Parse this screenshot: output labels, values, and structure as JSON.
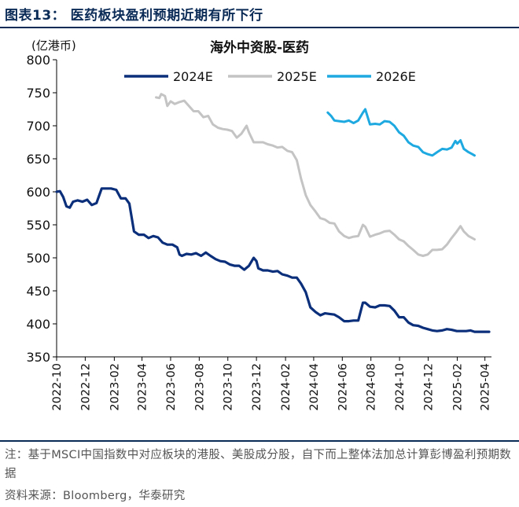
{
  "header": {
    "title": "图表13：  医药板块盈利预期近期有所下行"
  },
  "chart_data": {
    "type": "line",
    "title": "海外中资股-医药",
    "ylabel": "(亿港币)",
    "ylim": [
      350,
      800
    ],
    "yticks": [
      350,
      400,
      450,
      500,
      550,
      600,
      650,
      700,
      750,
      800
    ],
    "x_range": [
      "2022-10-01",
      "2025-04-15"
    ],
    "x_ticks": [
      "2022-10",
      "2022-12",
      "2023-02",
      "2023-04",
      "2023-06",
      "2023-08",
      "2023-10",
      "2023-12",
      "2024-02",
      "2024-04",
      "2024-06",
      "2024-08",
      "2024-10",
      "2024-12",
      "2025-02",
      "2025-04"
    ],
    "legend_position": "top",
    "grid": false,
    "series": [
      {
        "name": "2024E",
        "color": "#0b2f7a",
        "points": [
          [
            "2022-10-01",
            600
          ],
          [
            "2022-10-08",
            601
          ],
          [
            "2022-10-15",
            592
          ],
          [
            "2022-10-22",
            578
          ],
          [
            "2022-10-29",
            576
          ],
          [
            "2022-11-05",
            585
          ],
          [
            "2022-11-15",
            587
          ],
          [
            "2022-11-25",
            585
          ],
          [
            "2022-12-05",
            588
          ],
          [
            "2022-12-15",
            580
          ],
          [
            "2022-12-25",
            583
          ],
          [
            "2023-01-05",
            605
          ],
          [
            "2023-01-15",
            605
          ],
          [
            "2023-01-25",
            605
          ],
          [
            "2023-02-05",
            603
          ],
          [
            "2023-02-15",
            590
          ],
          [
            "2023-02-25",
            590
          ],
          [
            "2023-03-05",
            582
          ],
          [
            "2023-03-15",
            540
          ],
          [
            "2023-03-25",
            535
          ],
          [
            "2023-04-05",
            535
          ],
          [
            "2023-04-15",
            530
          ],
          [
            "2023-04-25",
            533
          ],
          [
            "2023-05-05",
            531
          ],
          [
            "2023-05-15",
            523
          ],
          [
            "2023-05-25",
            520
          ],
          [
            "2023-06-05",
            520
          ],
          [
            "2023-06-15",
            516
          ],
          [
            "2023-06-20",
            505
          ],
          [
            "2023-06-25",
            503
          ],
          [
            "2023-07-05",
            506
          ],
          [
            "2023-07-15",
            505
          ],
          [
            "2023-07-25",
            507
          ],
          [
            "2023-08-05",
            503
          ],
          [
            "2023-08-15",
            508
          ],
          [
            "2023-08-25",
            503
          ],
          [
            "2023-09-05",
            498
          ],
          [
            "2023-09-15",
            495
          ],
          [
            "2023-09-25",
            494
          ],
          [
            "2023-10-05",
            490
          ],
          [
            "2023-10-15",
            488
          ],
          [
            "2023-10-25",
            488
          ],
          [
            "2023-11-05",
            482
          ],
          [
            "2023-11-15",
            488
          ],
          [
            "2023-11-25",
            500
          ],
          [
            "2023-12-01",
            495
          ],
          [
            "2023-12-05",
            484
          ],
          [
            "2023-12-15",
            481
          ],
          [
            "2023-12-25",
            481
          ],
          [
            "2024-01-05",
            479
          ],
          [
            "2024-01-15",
            480
          ],
          [
            "2024-01-25",
            475
          ],
          [
            "2024-02-05",
            473
          ],
          [
            "2024-02-15",
            470
          ],
          [
            "2024-02-25",
            470
          ],
          [
            "2024-03-05",
            461
          ],
          [
            "2024-03-15",
            448
          ],
          [
            "2024-03-25",
            425
          ],
          [
            "2024-04-05",
            418
          ],
          [
            "2024-04-15",
            413
          ],
          [
            "2024-04-25",
            416
          ],
          [
            "2024-05-05",
            415
          ],
          [
            "2024-05-15",
            414
          ],
          [
            "2024-05-25",
            410
          ],
          [
            "2024-06-05",
            404
          ],
          [
            "2024-06-15",
            404
          ],
          [
            "2024-06-25",
            405
          ],
          [
            "2024-07-05",
            405
          ],
          [
            "2024-07-15",
            432
          ],
          [
            "2024-07-20",
            432
          ],
          [
            "2024-07-30",
            426
          ],
          [
            "2024-08-10",
            425
          ],
          [
            "2024-08-20",
            428
          ],
          [
            "2024-08-30",
            428
          ],
          [
            "2024-09-10",
            427
          ],
          [
            "2024-09-20",
            420
          ],
          [
            "2024-09-30",
            410
          ],
          [
            "2024-10-10",
            410
          ],
          [
            "2024-10-20",
            402
          ],
          [
            "2024-10-30",
            398
          ],
          [
            "2024-11-10",
            397
          ],
          [
            "2024-11-20",
            394
          ],
          [
            "2024-11-30",
            392
          ],
          [
            "2024-12-10",
            390
          ],
          [
            "2024-12-20",
            389
          ],
          [
            "2024-12-31",
            390
          ],
          [
            "2025-01-10",
            392
          ],
          [
            "2025-01-20",
            391
          ],
          [
            "2025-01-31",
            389
          ],
          [
            "2025-02-10",
            389
          ],
          [
            "2025-02-20",
            389
          ],
          [
            "2025-03-01",
            390
          ],
          [
            "2025-03-10",
            388
          ],
          [
            "2025-03-20",
            388
          ],
          [
            "2025-04-10",
            388
          ]
        ]
      },
      {
        "name": "2025E",
        "color": "#c4c4c4",
        "points": [
          [
            "2023-05-01",
            743
          ],
          [
            "2023-05-08",
            742
          ],
          [
            "2023-05-12",
            748
          ],
          [
            "2023-05-20",
            745
          ],
          [
            "2023-05-25",
            730
          ],
          [
            "2023-06-01",
            737
          ],
          [
            "2023-06-10",
            733
          ],
          [
            "2023-06-20",
            736
          ],
          [
            "2023-06-30",
            738
          ],
          [
            "2023-07-10",
            730
          ],
          [
            "2023-07-20",
            722
          ],
          [
            "2023-07-30",
            722
          ],
          [
            "2023-08-10",
            713
          ],
          [
            "2023-08-20",
            715
          ],
          [
            "2023-08-30",
            702
          ],
          [
            "2023-09-10",
            697
          ],
          [
            "2023-09-20",
            695
          ],
          [
            "2023-09-30",
            694
          ],
          [
            "2023-10-10",
            692
          ],
          [
            "2023-10-20",
            682
          ],
          [
            "2023-10-30",
            688
          ],
          [
            "2023-11-10",
            700
          ],
          [
            "2023-11-15",
            690
          ],
          [
            "2023-11-25",
            675
          ],
          [
            "2023-12-05",
            675
          ],
          [
            "2023-12-15",
            675
          ],
          [
            "2023-12-25",
            672
          ],
          [
            "2024-01-05",
            670
          ],
          [
            "2024-01-15",
            667
          ],
          [
            "2024-01-25",
            668
          ],
          [
            "2024-02-05",
            662
          ],
          [
            "2024-02-15",
            660
          ],
          [
            "2024-02-25",
            648
          ],
          [
            "2024-03-05",
            620
          ],
          [
            "2024-03-15",
            595
          ],
          [
            "2024-03-25",
            580
          ],
          [
            "2024-04-05",
            570
          ],
          [
            "2024-04-15",
            560
          ],
          [
            "2024-04-25",
            558
          ],
          [
            "2024-05-05",
            553
          ],
          [
            "2024-05-15",
            552
          ],
          [
            "2024-05-25",
            540
          ],
          [
            "2024-06-05",
            533
          ],
          [
            "2024-06-15",
            530
          ],
          [
            "2024-06-25",
            532
          ],
          [
            "2024-07-05",
            533
          ],
          [
            "2024-07-15",
            550
          ],
          [
            "2024-07-20",
            547
          ],
          [
            "2024-07-30",
            532
          ],
          [
            "2024-08-10",
            535
          ],
          [
            "2024-08-20",
            537
          ],
          [
            "2024-08-30",
            540
          ],
          [
            "2024-09-10",
            541
          ],
          [
            "2024-09-20",
            535
          ],
          [
            "2024-09-30",
            528
          ],
          [
            "2024-10-10",
            525
          ],
          [
            "2024-10-20",
            518
          ],
          [
            "2024-10-30",
            512
          ],
          [
            "2024-11-10",
            505
          ],
          [
            "2024-11-20",
            503
          ],
          [
            "2024-11-30",
            505
          ],
          [
            "2024-12-10",
            512
          ],
          [
            "2024-12-20",
            512
          ],
          [
            "2024-12-31",
            513
          ],
          [
            "2025-01-10",
            520
          ],
          [
            "2025-01-20",
            530
          ],
          [
            "2025-01-31",
            540
          ],
          [
            "2025-02-08",
            548
          ],
          [
            "2025-02-15",
            540
          ],
          [
            "2025-02-25",
            533
          ],
          [
            "2025-03-05",
            530
          ],
          [
            "2025-03-10",
            528
          ]
        ]
      },
      {
        "name": "2026E",
        "color": "#1ea9e1",
        "points": [
          [
            "2024-05-01",
            720
          ],
          [
            "2024-05-08",
            715
          ],
          [
            "2024-05-15",
            708
          ],
          [
            "2024-05-25",
            707
          ],
          [
            "2024-06-05",
            706
          ],
          [
            "2024-06-15",
            708
          ],
          [
            "2024-06-25",
            704
          ],
          [
            "2024-07-05",
            708
          ],
          [
            "2024-07-15",
            720
          ],
          [
            "2024-07-20",
            725
          ],
          [
            "2024-07-30",
            702
          ],
          [
            "2024-08-10",
            703
          ],
          [
            "2024-08-20",
            702
          ],
          [
            "2024-08-30",
            707
          ],
          [
            "2024-09-10",
            706
          ],
          [
            "2024-09-20",
            700
          ],
          [
            "2024-09-30",
            690
          ],
          [
            "2024-10-10",
            685
          ],
          [
            "2024-10-20",
            675
          ],
          [
            "2024-10-30",
            670
          ],
          [
            "2024-11-10",
            668
          ],
          [
            "2024-11-20",
            660
          ],
          [
            "2024-11-30",
            657
          ],
          [
            "2024-12-10",
            655
          ],
          [
            "2024-12-20",
            660
          ],
          [
            "2024-12-31",
            665
          ],
          [
            "2025-01-10",
            664
          ],
          [
            "2025-01-20",
            667
          ],
          [
            "2025-01-28",
            677
          ],
          [
            "2025-02-01",
            673
          ],
          [
            "2025-02-08",
            678
          ],
          [
            "2025-02-15",
            665
          ],
          [
            "2025-02-25",
            660
          ],
          [
            "2025-03-05",
            657
          ],
          [
            "2025-03-10",
            655
          ]
        ]
      }
    ]
  },
  "note": "注：基于MSCI中国指数中对应板块的港股、美股成分股，自下而上整体法加总计算彭博盈利预期数据",
  "source": "资料来源：Bloomberg，华泰研究"
}
